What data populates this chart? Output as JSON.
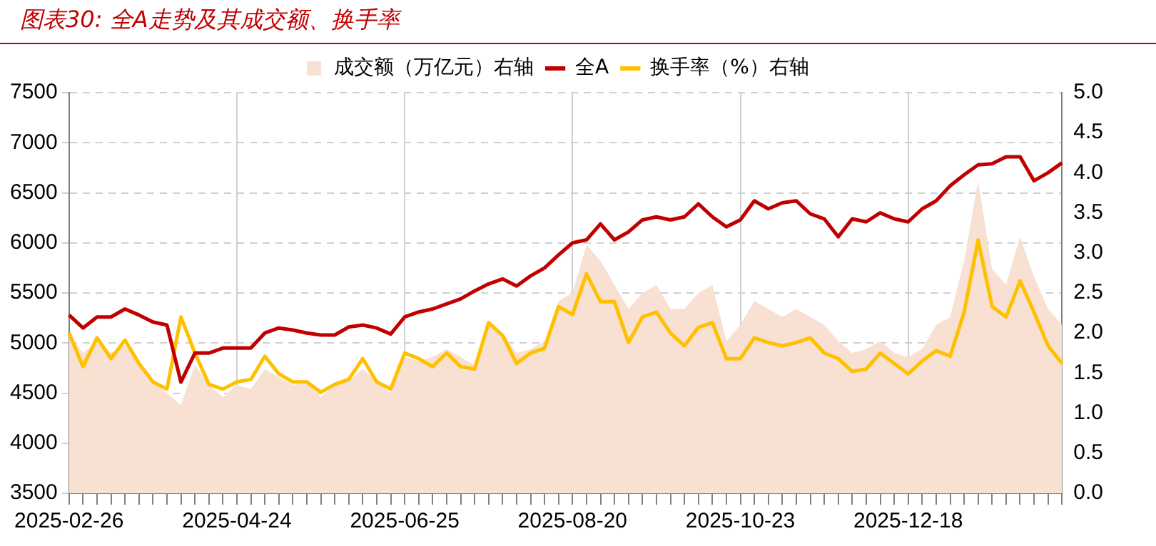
{
  "chart_data": {
    "type": "line",
    "title": "图表30: 全A走势及其成交额、换手率",
    "categories": [
      "2025-02-26",
      null,
      null,
      null,
      null,
      null,
      null,
      null,
      null,
      null,
      null,
      null,
      "2025-04-24",
      null,
      null,
      null,
      null,
      null,
      null,
      null,
      null,
      null,
      null,
      null,
      "2025-06-25",
      null,
      null,
      null,
      null,
      null,
      null,
      null,
      null,
      null,
      null,
      null,
      "2025-08-20",
      null,
      null,
      null,
      null,
      null,
      null,
      null,
      null,
      null,
      null,
      null,
      "2025-10-23",
      null,
      null,
      null,
      null,
      null,
      null,
      null,
      null,
      null,
      null,
      null,
      "2025-12-18",
      null,
      null,
      null,
      null,
      null,
      null,
      null,
      null,
      null,
      null,
      null
    ],
    "series": [
      {
        "name": "成交额（万亿元）右轴",
        "type": "area",
        "axis": "y2",
        "color": "#f8e0d2",
        "values": [
          2.0,
          1.75,
          1.9,
          1.75,
          1.85,
          1.65,
          1.4,
          1.25,
          1.1,
          1.6,
          1.35,
          1.2,
          1.35,
          1.3,
          1.55,
          1.45,
          1.35,
          1.4,
          1.2,
          1.35,
          1.4,
          1.55,
          1.4,
          1.25,
          1.7,
          1.65,
          1.7,
          1.8,
          1.7,
          1.6,
          2.1,
          2.0,
          1.75,
          1.8,
          1.9,
          2.4,
          2.5,
          3.1,
          2.9,
          2.6,
          2.3,
          2.5,
          2.6,
          2.3,
          2.3,
          2.5,
          2.6,
          1.9,
          2.1,
          2.4,
          2.3,
          2.2,
          2.3,
          2.2,
          2.1,
          1.9,
          1.75,
          1.8,
          1.9,
          1.75,
          1.7,
          1.8,
          2.1,
          2.2,
          2.9,
          3.9,
          2.8,
          2.6,
          3.2,
          2.7,
          2.3,
          2.1
        ]
      },
      {
        "name": "全A",
        "type": "line",
        "axis": "y",
        "color": "#c00000",
        "values": [
          5280,
          5150,
          5260,
          5260,
          5340,
          5280,
          5210,
          5180,
          4610,
          4900,
          4900,
          4950,
          4950,
          4950,
          5100,
          5150,
          5130,
          5100,
          5080,
          5080,
          5160,
          5180,
          5150,
          5090,
          5260,
          5310,
          5340,
          5390,
          5440,
          5520,
          5590,
          5640,
          5570,
          5670,
          5750,
          5880,
          6000,
          6030,
          6190,
          6030,
          6110,
          6230,
          6260,
          6230,
          6260,
          6390,
          6260,
          6160,
          6230,
          6420,
          6340,
          6400,
          6420,
          6290,
          6240,
          6060,
          6240,
          6210,
          6300,
          6240,
          6210,
          6340,
          6420,
          6570,
          6680,
          6780,
          6790,
          6860,
          6860,
          6620,
          6700,
          6800
        ]
      },
      {
        "name": "换手率（%）右轴",
        "type": "line",
        "axis": "y2",
        "color": "#ffc000",
        "values": [
          2.0,
          1.58,
          1.94,
          1.68,
          1.91,
          1.62,
          1.39,
          1.3,
          2.2,
          1.75,
          1.36,
          1.3,
          1.39,
          1.42,
          1.71,
          1.49,
          1.39,
          1.39,
          1.26,
          1.36,
          1.42,
          1.68,
          1.39,
          1.3,
          1.75,
          1.68,
          1.58,
          1.75,
          1.58,
          1.55,
          2.13,
          1.97,
          1.62,
          1.75,
          1.81,
          2.33,
          2.23,
          2.74,
          2.39,
          2.39,
          1.88,
          2.2,
          2.26,
          2.0,
          1.84,
          2.07,
          2.13,
          1.68,
          1.68,
          1.94,
          1.88,
          1.84,
          1.88,
          1.94,
          1.75,
          1.68,
          1.52,
          1.55,
          1.75,
          1.62,
          1.49,
          1.65,
          1.78,
          1.71,
          2.26,
          3.16,
          2.33,
          2.2,
          2.65,
          2.26,
          1.84,
          1.62
        ]
      }
    ],
    "ylim": [
      3500,
      7500
    ],
    "yticks": [
      3500,
      4000,
      4500,
      5000,
      5500,
      6000,
      6500,
      7000,
      7500
    ],
    "y2lim": [
      0,
      5
    ],
    "y2ticks": [
      {
        "value": 0,
        "label": "0.0"
      },
      {
        "value": 0.5,
        "label": "0.5"
      },
      {
        "value": 1,
        "label": "1.0"
      },
      {
        "value": 1.5,
        "label": "1.5"
      },
      {
        "value": 2,
        "label": "2.0"
      },
      {
        "value": 2.5,
        "label": "2.5"
      },
      {
        "value": 3,
        "label": "3.0"
      },
      {
        "value": 3.5,
        "label": "3.5"
      },
      {
        "value": 4,
        "label": "4.0"
      },
      {
        "value": 4.5,
        "label": "4.5"
      },
      {
        "value": 5,
        "label": "5.0"
      }
    ],
    "grid": true,
    "legend": "top"
  }
}
